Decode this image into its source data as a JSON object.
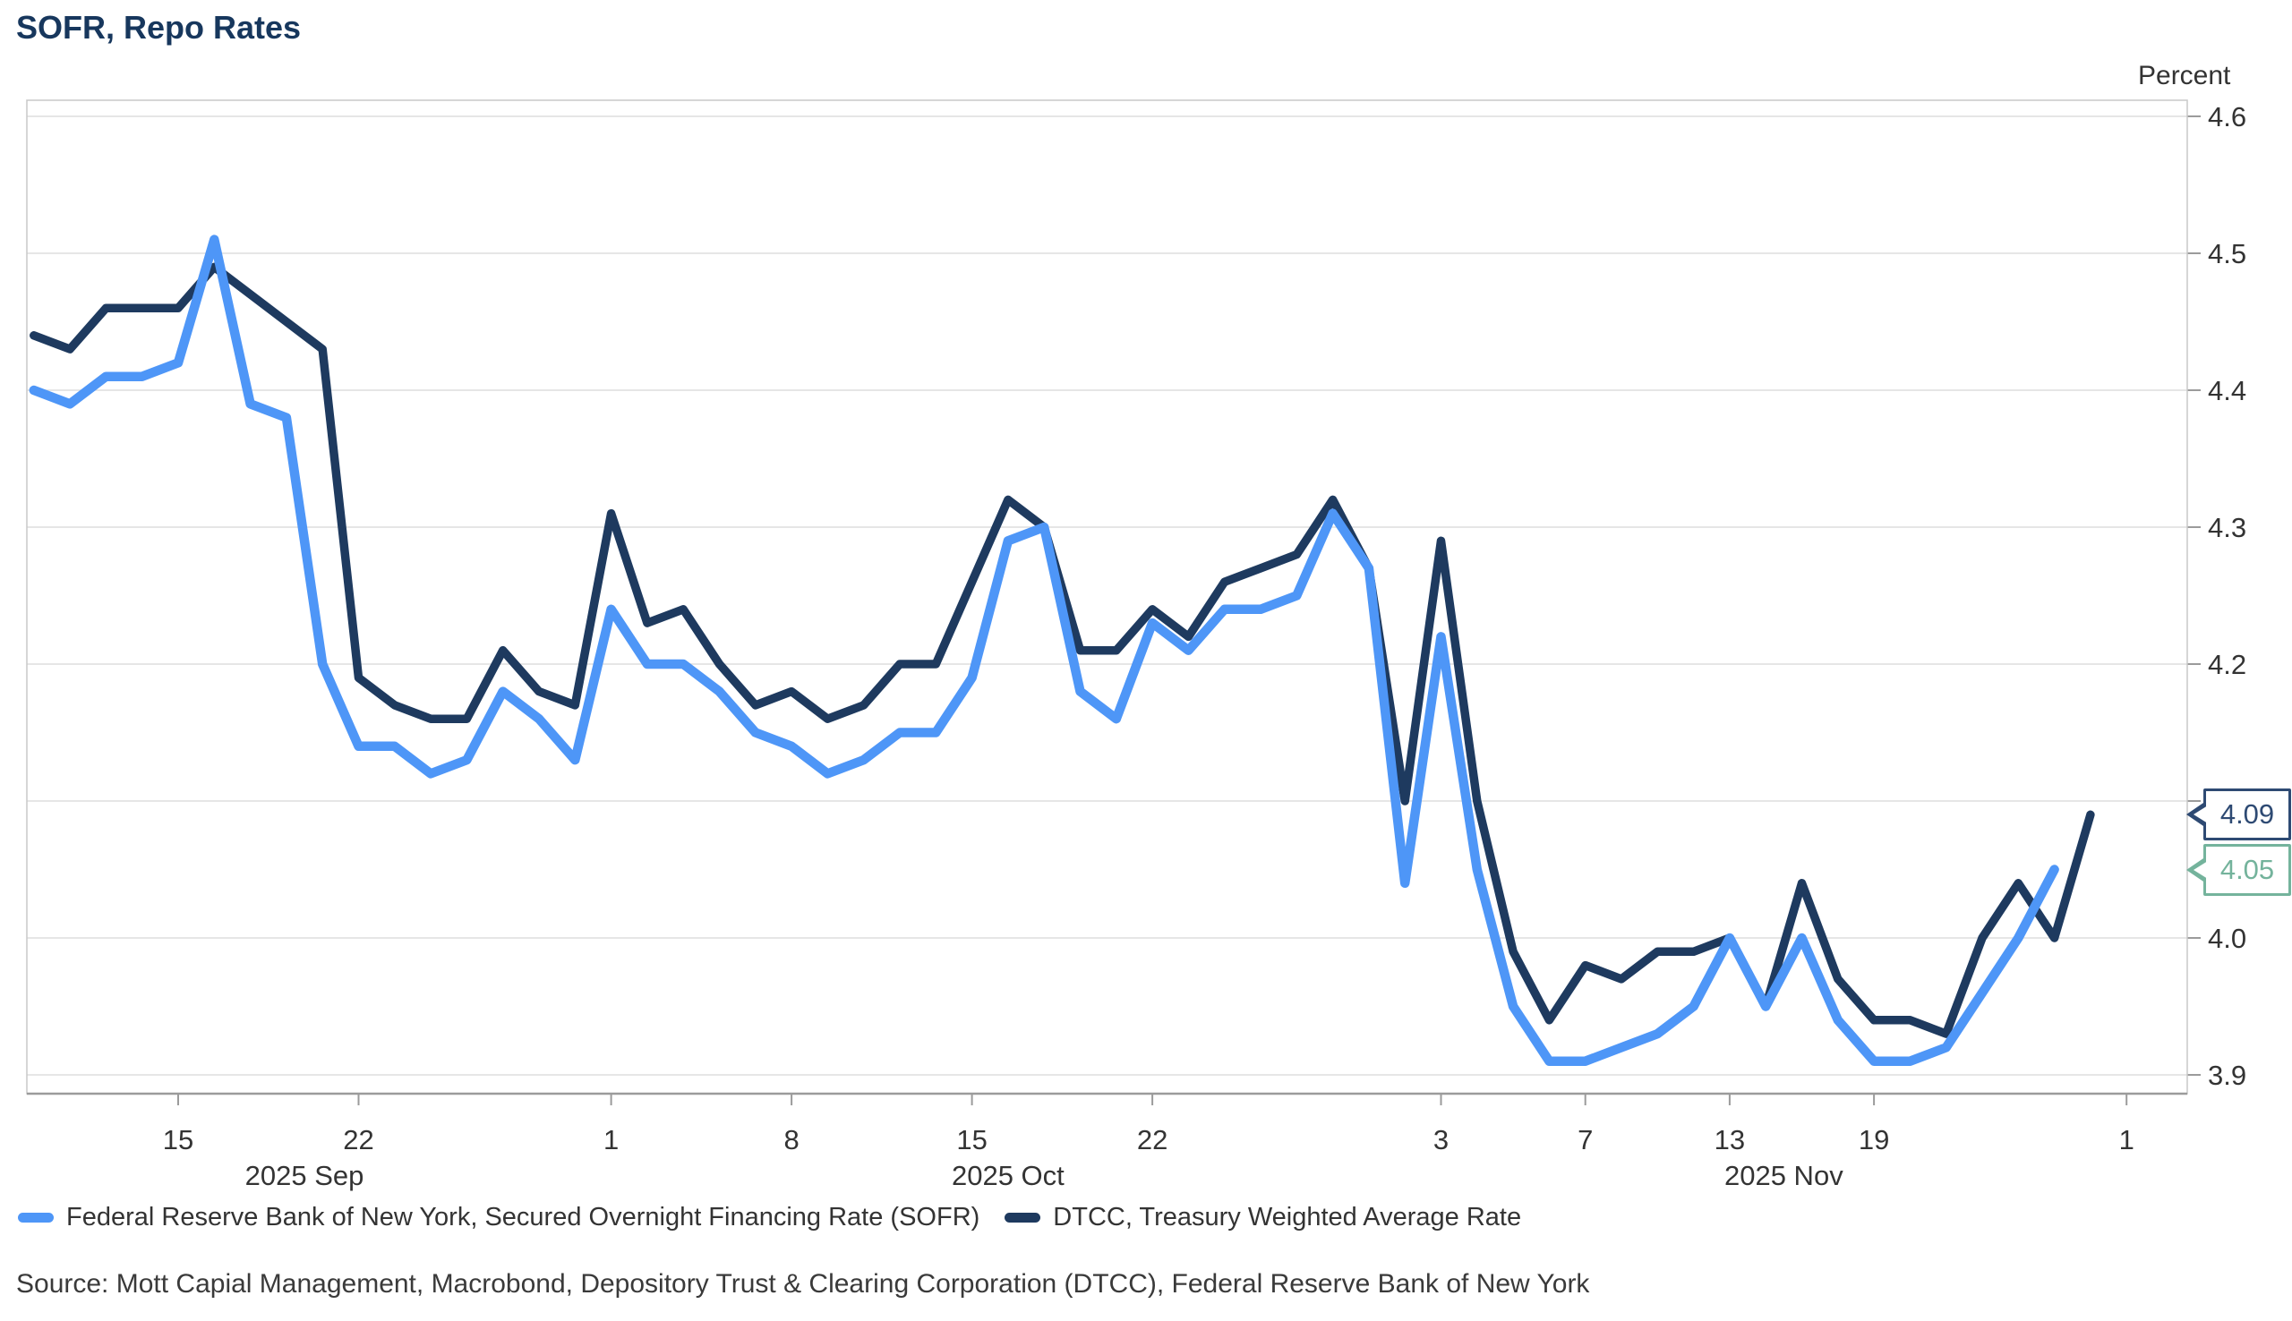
{
  "title": "SOFR, Repo Rates",
  "source": "Source: Mott Capial Management, Macrobond, Depository Trust & Clearing Corporation (DTCC), Federal Reserve Bank of New York",
  "chart_data": {
    "type": "line",
    "title": "SOFR, Repo Rates",
    "grid": "horizontal",
    "legend_position": "bottom",
    "colors": {
      "background": "#FFFFFF",
      "gridline": "#DEDEDE",
      "plot_border": "#C8C8C8",
      "axis_line": "#9B9B9B",
      "tick_text": "#333333",
      "title_text": "#17375D"
    },
    "x": [
      "Sep 9",
      "Sep 10",
      "Sep 11",
      "Sep 12",
      "Sep 15",
      "Sep 16",
      "Sep 17",
      "Sep 18",
      "Sep 19",
      "Sep 22",
      "Sep 23",
      "Sep 24",
      "Sep 25",
      "Sep 26",
      "Sep 29",
      "Sep 30",
      "Oct 1",
      "Oct 2",
      "Oct 3",
      "Oct 6",
      "Oct 7",
      "Oct 8",
      "Oct 9",
      "Oct 10",
      "Oct 13",
      "Oct 14",
      "Oct 15",
      "Oct 16",
      "Oct 17",
      "Oct 20",
      "Oct 21",
      "Oct 22",
      "Oct 23",
      "Oct 24",
      "Oct 27",
      "Oct 28",
      "Oct 29",
      "Oct 30",
      "Oct 31",
      "Nov 3",
      "Nov 4",
      "Nov 5",
      "Nov 6",
      "Nov 7",
      "Nov 10",
      "Nov 11",
      "Nov 12",
      "Nov 13",
      "Nov 14",
      "Nov 17",
      "Nov 18",
      "Nov 19",
      "Nov 20",
      "Nov 21",
      "Nov 24",
      "Nov 25",
      "Nov 26",
      "Nov 28"
    ],
    "series": [
      {
        "name": "Federal Reserve Bank of New York, Secured Overnight Financing Rate (SOFR)",
        "color": "#4E96F7",
        "line_width": 10.5,
        "last_value_label": "4.05",
        "callout_color": "#74B39C",
        "values": [
          4.4,
          4.39,
          4.41,
          4.41,
          4.42,
          4.51,
          4.39,
          4.38,
          4.2,
          4.14,
          4.14,
          4.12,
          4.13,
          4.18,
          4.16,
          4.13,
          4.24,
          4.2,
          4.2,
          4.18,
          4.15,
          4.14,
          4.12,
          4.13,
          4.15,
          4.15,
          4.19,
          4.29,
          4.3,
          4.18,
          4.16,
          4.23,
          4.21,
          4.24,
          4.24,
          4.25,
          4.31,
          4.27,
          4.04,
          4.22,
          4.05,
          3.95,
          3.91,
          3.91,
          3.92,
          3.93,
          3.95,
          4.0,
          3.95,
          4.0,
          3.94,
          3.91,
          3.91,
          3.92,
          3.96,
          4.0,
          4.05,
          null
        ]
      },
      {
        "name": "DTCC, Treasury Weighted Average Rate",
        "color": "#1E3A5F",
        "line_width": 9.5,
        "last_value_label": "4.09",
        "callout_color": "#2E4A73",
        "values": [
          4.44,
          4.43,
          4.46,
          4.46,
          4.46,
          4.49,
          4.47,
          4.45,
          4.43,
          4.19,
          4.17,
          4.16,
          4.16,
          4.21,
          4.18,
          4.17,
          4.31,
          4.23,
          4.24,
          4.2,
          4.17,
          4.18,
          4.16,
          4.17,
          4.2,
          4.2,
          4.26,
          4.32,
          4.3,
          4.21,
          4.21,
          4.24,
          4.22,
          4.26,
          4.27,
          4.28,
          4.32,
          4.27,
          4.1,
          4.29,
          4.1,
          3.99,
          3.94,
          3.98,
          3.97,
          3.99,
          3.99,
          4.0,
          3.95,
          4.04,
          3.97,
          3.94,
          3.94,
          3.93,
          4.0,
          4.04,
          4.0,
          4.09
        ]
      }
    ],
    "y_axis": {
      "label": "Percent",
      "min": 3.9,
      "max": 4.6,
      "tick_step": 0.1,
      "tick_labels": [
        "4.6",
        "4.5",
        "4.4",
        "4.3",
        "4.2",
        "4.1",
        "4.0",
        "3.9"
      ]
    },
    "x_axis": {
      "day_ticks": [
        {
          "label": "15",
          "index": 4
        },
        {
          "label": "22",
          "index": 9
        },
        {
          "label": "1",
          "index": 16
        },
        {
          "label": "8",
          "index": 21
        },
        {
          "label": "15",
          "index": 26
        },
        {
          "label": "22",
          "index": 31
        },
        {
          "label": "3",
          "index": 39
        },
        {
          "label": "7",
          "index": 43
        },
        {
          "label": "13",
          "index": 47
        },
        {
          "label": "19",
          "index": 51
        },
        {
          "label": "1",
          "index": 58
        }
      ],
      "month_labels": [
        {
          "label": "2025 Sep",
          "index": 7.5
        },
        {
          "label": "2025 Oct",
          "index": 27
        },
        {
          "label": "2025 Nov",
          "index": 48.5
        }
      ]
    }
  }
}
